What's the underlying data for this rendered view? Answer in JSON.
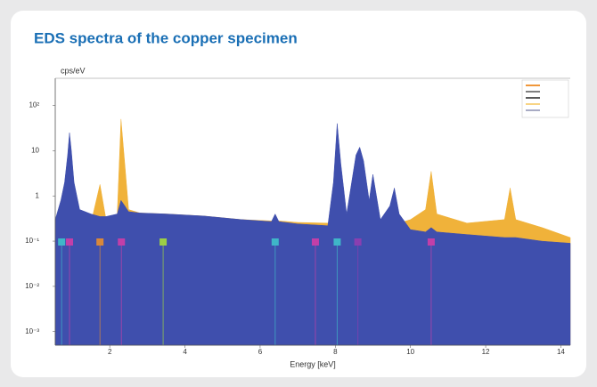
{
  "chart_data": {
    "type": "area",
    "title": "EDS spectra of the copper specimen",
    "ylabel": "cps/eV",
    "xlabel": "Energy [keV]",
    "yscale": "log",
    "x": [
      0.55,
      0.7,
      0.8,
      0.88,
      0.93,
      0.98,
      1.05,
      1.2,
      1.5,
      1.74,
      1.9,
      2.2,
      2.3,
      2.4,
      2.5,
      2.8,
      3.5,
      4.5,
      5.5,
      6.3,
      6.4,
      6.5,
      7.0,
      7.8,
      7.95,
      8.05,
      8.15,
      8.3,
      8.55,
      8.65,
      8.75,
      8.9,
      9.0,
      9.2,
      9.45,
      9.57,
      9.7,
      10.0,
      10.4,
      10.55,
      10.7,
      11.5,
      12.5,
      12.65,
      12.8,
      13.5,
      14.25
    ],
    "series": [
      {
        "color": "#f0b23a",
        "values": [
          0.3,
          0.5,
          0.6,
          0.5,
          0.4,
          0.3,
          0.2,
          0.2,
          0.25,
          1.8,
          0.3,
          0.4,
          50,
          5,
          0.5,
          0.42,
          0.4,
          0.36,
          0.3,
          0.28,
          0.3,
          0.28,
          0.26,
          0.25,
          0.3,
          0.35,
          0.3,
          0.25,
          0.25,
          0.28,
          0.25,
          0.25,
          0.25,
          0.25,
          0.25,
          0.25,
          0.25,
          0.3,
          0.5,
          3.5,
          0.4,
          0.25,
          0.3,
          1.5,
          0.3,
          0.2,
          0.12
        ]
      },
      {
        "color": "#3f4fad",
        "values": [
          0.3,
          0.8,
          2,
          8,
          25,
          10,
          2,
          0.5,
          0.4,
          0.35,
          0.35,
          0.4,
          0.8,
          0.6,
          0.45,
          0.42,
          0.4,
          0.36,
          0.3,
          0.27,
          0.4,
          0.27,
          0.24,
          0.22,
          2,
          40,
          5,
          0.4,
          8,
          12,
          6,
          0.8,
          3,
          0.3,
          0.6,
          1.5,
          0.4,
          0.18,
          0.16,
          0.2,
          0.16,
          0.14,
          0.12,
          0.12,
          0.12,
          0.1,
          0.09
        ]
      }
    ],
    "markers": {
      "x": [
        0.72,
        0.93,
        1.74,
        2.31,
        3.42,
        6.4,
        7.47,
        8.05,
        8.6,
        10.55
      ],
      "colors": [
        "#3fb6c8",
        "#c23fa8",
        "#d9883a",
        "#c23fa8",
        "#9ccf45",
        "#3fb6c8",
        "#c23fa8",
        "#3fb6c8",
        "#8a3fb0",
        "#c23fa8"
      ]
    },
    "xlim": [
      0.55,
      14.25
    ],
    "xticks": [
      2,
      4,
      6,
      8,
      10,
      12,
      14
    ],
    "ylim": [
      0.0005,
      400
    ],
    "yticks": [
      {
        "value": 100,
        "label": "10²"
      },
      10,
      1,
      {
        "value": 0.1,
        "label": "10⁻¹"
      },
      {
        "value": 0.01,
        "label": "10⁻²"
      },
      {
        "value": 0.001,
        "label": "10⁻³"
      }
    ]
  }
}
